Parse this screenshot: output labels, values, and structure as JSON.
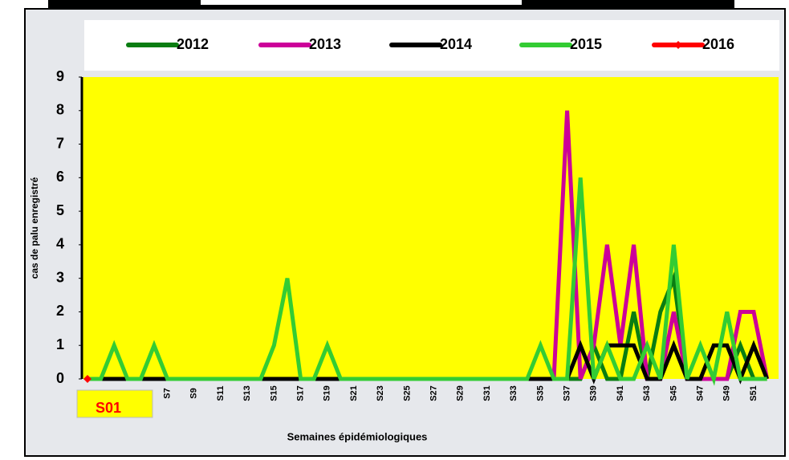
{
  "chart_data": {
    "type": "line",
    "x_label": "Semaines épidémiologiques",
    "y_label": "cas de palu enregistré",
    "categories": [
      "S01",
      null,
      null,
      null,
      null,
      null,
      "S7",
      null,
      "S9",
      null,
      "S11",
      null,
      "S13",
      null,
      "S15",
      null,
      "S17",
      null,
      "S19",
      null,
      "S21",
      null,
      "S23",
      null,
      "S25",
      null,
      "S27",
      null,
      "S29",
      null,
      "S31",
      null,
      "S33",
      null,
      "S35",
      null,
      "S37",
      null,
      "S39",
      null,
      "S41",
      null,
      "S43",
      null,
      "S45",
      null,
      "S47",
      null,
      "S49",
      null,
      "S51",
      null
    ],
    "series": [
      {
        "name": "2012",
        "color": "#0a7d12",
        "values": [
          0,
          0,
          0,
          0,
          0,
          0,
          0,
          0,
          0,
          0,
          0,
          0,
          0,
          0,
          0,
          0,
          0,
          0,
          0,
          0,
          0,
          0,
          0,
          0,
          0,
          0,
          0,
          0,
          0,
          0,
          0,
          0,
          0,
          0,
          0,
          0,
          0,
          0,
          1,
          0,
          0,
          2,
          0,
          2,
          3,
          0,
          0,
          0,
          0,
          1,
          0,
          0
        ]
      },
      {
        "name": "2013",
        "color": "#cc0099",
        "values": [
          0,
          0,
          0,
          0,
          0,
          0,
          0,
          0,
          0,
          0,
          0,
          0,
          0,
          0,
          0,
          0,
          0,
          0,
          0,
          0,
          0,
          0,
          0,
          0,
          0,
          0,
          0,
          0,
          0,
          0,
          0,
          0,
          0,
          0,
          0,
          0,
          8,
          0,
          1,
          4,
          1,
          4,
          0,
          0,
          2,
          0,
          0,
          0,
          0,
          2,
          2,
          0
        ]
      },
      {
        "name": "2014",
        "color": "#000000",
        "values": [
          0,
          0,
          0,
          0,
          0,
          0,
          0,
          0,
          0,
          0,
          0,
          0,
          0,
          0,
          0,
          0,
          0,
          0,
          0,
          0,
          0,
          0,
          0,
          0,
          0,
          0,
          0,
          0,
          0,
          0,
          0,
          0,
          0,
          0,
          0,
          0,
          0,
          1,
          0,
          1,
          1,
          1,
          0,
          0,
          1,
          0,
          0,
          1,
          1,
          0,
          1,
          0
        ]
      },
      {
        "name": "2015",
        "color": "#33cc33",
        "values": [
          0,
          0,
          1,
          0,
          0,
          1,
          0,
          0,
          0,
          0,
          0,
          0,
          0,
          0,
          1,
          3,
          0,
          0,
          1,
          0,
          0,
          0,
          0,
          0,
          0,
          0,
          0,
          0,
          0,
          0,
          0,
          0,
          0,
          0,
          1,
          0,
          0,
          6,
          0,
          1,
          0,
          0,
          1,
          0,
          4,
          0,
          1,
          0,
          2,
          0,
          0,
          0
        ]
      },
      {
        "name": "2016",
        "color": "#ff0000",
        "marker": true,
        "values": [
          0,
          null,
          null,
          null,
          null,
          null,
          null,
          null,
          null,
          null,
          null,
          null,
          null,
          null,
          null,
          null,
          null,
          null,
          null,
          null,
          null,
          null,
          null,
          null,
          null,
          null,
          null,
          null,
          null,
          null,
          null,
          null,
          null,
          null,
          null,
          null,
          null,
          null,
          null,
          null,
          null,
          null,
          null,
          null,
          null,
          null,
          null,
          null,
          null,
          null,
          null,
          null
        ]
      }
    ],
    "ylim": [
      0,
      9
    ],
    "yticks": [
      0,
      1,
      2,
      3,
      4,
      5,
      6,
      7,
      8,
      9
    ],
    "grid": false
  }
}
